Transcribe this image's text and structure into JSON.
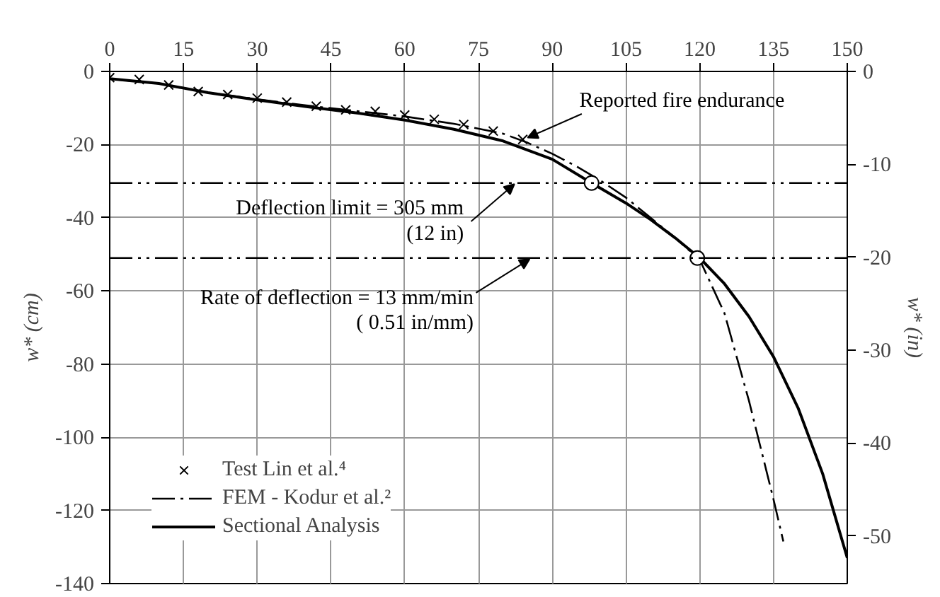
{
  "chart_data": {
    "type": "line",
    "ylabel": "w* (cm)",
    "y2label": "w* (in)",
    "xlim": [
      0,
      150
    ],
    "xticks": [
      0,
      15,
      30,
      45,
      60,
      75,
      90,
      105,
      120,
      135,
      150
    ],
    "ylim": [
      -140,
      0
    ],
    "yticks": [
      0,
      -20,
      -40,
      -60,
      -80,
      -100,
      -120,
      -140
    ],
    "y2lim": [
      -55.12,
      0
    ],
    "y2ticks": [
      0,
      -10,
      -20,
      -30,
      -40,
      -50
    ],
    "grid": true,
    "legend": "bottom left",
    "series": [
      {
        "name": "Test Lin et al.⁴",
        "type": "scatter",
        "marker": "cross",
        "color": "#000000",
        "x": [
          0,
          6,
          12,
          18,
          24,
          30,
          36,
          42,
          48,
          54,
          60,
          66,
          72,
          78,
          84
        ],
        "values": [
          -1.7,
          -2.2,
          -3.7,
          -5.5,
          -6.3,
          -7.3,
          -8.4,
          -9.5,
          -10.5,
          -10.9,
          -11.9,
          -13.1,
          -14.5,
          -16.3,
          -18.6
        ]
      },
      {
        "name": "FEM - Kodur et al.²",
        "line_style": "dashdot",
        "color": "#000000",
        "x": [
          0,
          10,
          20,
          30,
          40,
          50,
          60,
          70,
          80,
          85,
          90,
          95,
          100,
          105,
          110,
          115,
          120,
          125,
          130,
          135,
          137
        ],
        "values": [
          -2,
          -3.3,
          -5.8,
          -7.6,
          -9.3,
          -10.8,
          -12.3,
          -14.3,
          -17,
          -19.5,
          -22.5,
          -26,
          -30,
          -34.5,
          -40,
          -45.5,
          -51.5,
          -66,
          -90,
          -117,
          -128.5
        ]
      },
      {
        "name": "Sectional Analysis",
        "line_style": "solid",
        "color": "#000000",
        "x": [
          0,
          10,
          20,
          30,
          40,
          50,
          60,
          70,
          80,
          90,
          98,
          105,
          110,
          115,
          120,
          125,
          130,
          135,
          140,
          145,
          150
        ],
        "values": [
          -2,
          -3.3,
          -5.8,
          -7.8,
          -9.6,
          -11.3,
          -13.3,
          -15.8,
          -19,
          -24,
          -30.5,
          -36,
          -40.5,
          -45.5,
          -51,
          -58,
          -67,
          -78,
          -92,
          -110,
          -133
        ]
      },
      {
        "type": "scatter",
        "marker": "circle",
        "color": "#000000",
        "x": [
          98,
          119.5
        ],
        "values": [
          -30.5,
          -51
        ]
      }
    ],
    "ref_lines": [
      {
        "axis": "y",
        "value": -30.5,
        "color": "#000000",
        "line_style": "dashdotdot"
      },
      {
        "axis": "y",
        "value": -51,
        "color": "#000000",
        "line_style": "dashdotdot"
      }
    ],
    "annotations": [
      {
        "text": "Reported fire endurance",
        "x": 84,
        "y": -18.6
      },
      {
        "text": "Deflection limit = 305 mm\n(12 in)",
        "x": 82.3,
        "y": -30.5
      },
      {
        "text": "Rate of deflection = 13 mm/min\n( 0.51 in/mm)",
        "x": 85.4,
        "y": -51
      }
    ]
  }
}
